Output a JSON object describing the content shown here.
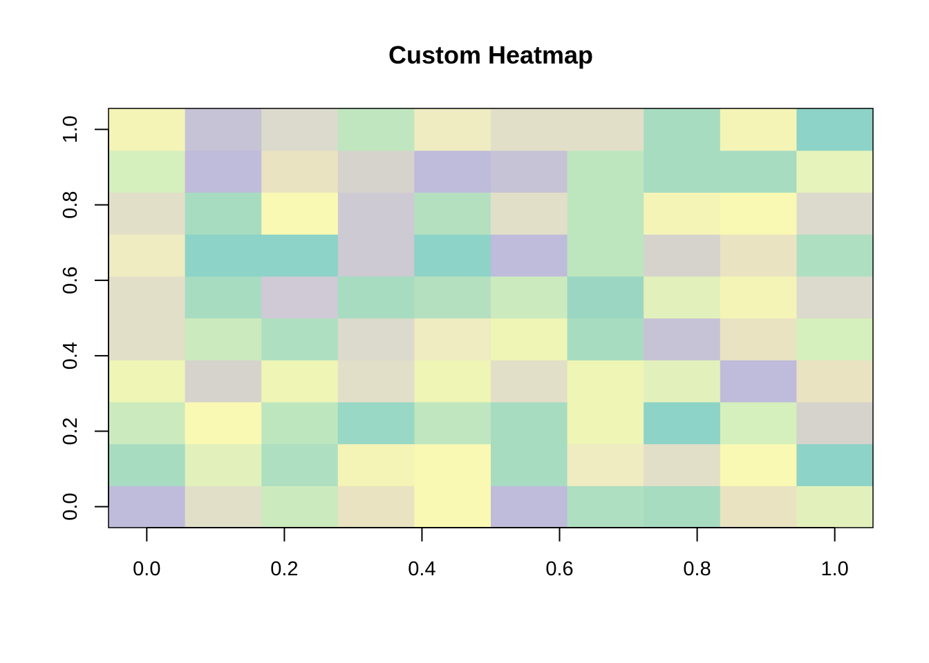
{
  "chart_data": {
    "type": "heatmap",
    "title": "Custom Heatmap",
    "xlabel": "",
    "ylabel": "",
    "xlim": [
      -0.0556,
      1.0556
    ],
    "ylim": [
      -0.0556,
      1.0556
    ],
    "x_ticks": [
      {
        "value": 0.0,
        "label": "0.0"
      },
      {
        "value": 0.2,
        "label": "0.2"
      },
      {
        "value": 0.4,
        "label": "0.4"
      },
      {
        "value": 0.6,
        "label": "0.6"
      },
      {
        "value": 0.8,
        "label": "0.8"
      },
      {
        "value": 1.0,
        "label": "1.0"
      }
    ],
    "y_ticks": [
      {
        "value": 0.0,
        "label": "0.0"
      },
      {
        "value": 0.2,
        "label": "0.2"
      },
      {
        "value": 0.4,
        "label": "0.4"
      },
      {
        "value": 0.6,
        "label": "0.6"
      },
      {
        "value": 0.8,
        "label": "0.8"
      },
      {
        "value": 1.0,
        "label": "1.0"
      }
    ],
    "n_cols": 10,
    "n_rows": 10,
    "grid": false,
    "legend": "none",
    "rows_bottom_to_top": [
      [
        "#bfbbda",
        "#e2dfc8",
        "#cbeabe",
        "#e9e3c2",
        "#f9f9b3",
        "#bfbbda",
        "#aedfc0",
        "#a7dcc1",
        "#e9e3c2",
        "#e2f1bb"
      ],
      [
        "#a7dcc1",
        "#e2f1bb",
        "#aedfc0",
        "#f4f4b7",
        "#f9f9b3",
        "#a7dcc1",
        "#eeecc0",
        "#e2dfc8",
        "#f9f9b3",
        "#8dd3c7"
      ],
      [
        "#cbeabe",
        "#f9f9b3",
        "#bde6bf",
        "#99d8c4",
        "#bfe6bf",
        "#a7dcc1",
        "#eef5b5",
        "#8dd3c7",
        "#d5efbd",
        "#d6d3cc"
      ],
      [
        "#eef5b5",
        "#d6d3cc",
        "#eef5b5",
        "#e2dfc8",
        "#eef5b5",
        "#e2dfc8",
        "#eef5b5",
        "#e2f1bb",
        "#bfbbda",
        "#e9e3c2"
      ],
      [
        "#e2dfc8",
        "#cbeabe",
        "#aedfc0",
        "#dbdacc",
        "#eeecc0",
        "#eef5b5",
        "#a7dcc1",
        "#c6c3d6",
        "#e9e3c2",
        "#d5efbd"
      ],
      [
        "#e2dfc8",
        "#a7dcc1",
        "#cfcad6",
        "#a7dcc1",
        "#b4e0c0",
        "#cbeabe",
        "#9bd6c2",
        "#e2f1bb",
        "#f4f4b7",
        "#dbdacc"
      ],
      [
        "#eeecc0",
        "#8dd3c7",
        "#8dd3c7",
        "#cdcad3",
        "#8dd3c7",
        "#bfbbda",
        "#bde6bf",
        "#d6d3cc",
        "#e9e3c2",
        "#aedfc0"
      ],
      [
        "#e2dfc8",
        "#a7dcc1",
        "#f9f9b3",
        "#cdcad3",
        "#b4e0c0",
        "#e2dfc8",
        "#bde6bf",
        "#f4f4b7",
        "#f9f9b3",
        "#dbdacc"
      ],
      [
        "#d5efbd",
        "#bfbbda",
        "#e9e3c2",
        "#d6d3cc",
        "#bfbbda",
        "#c6c3d6",
        "#bde6bf",
        "#a7dcc1",
        "#a7dcc1",
        "#e6f4bb"
      ],
      [
        "#f4f4b7",
        "#c6c3d6",
        "#dbdacc",
        "#bfe6bf",
        "#eeecc0",
        "#e2dfc8",
        "#e2dfc8",
        "#a7dcc1",
        "#f4f4b7",
        "#8dd3c7"
      ]
    ]
  }
}
